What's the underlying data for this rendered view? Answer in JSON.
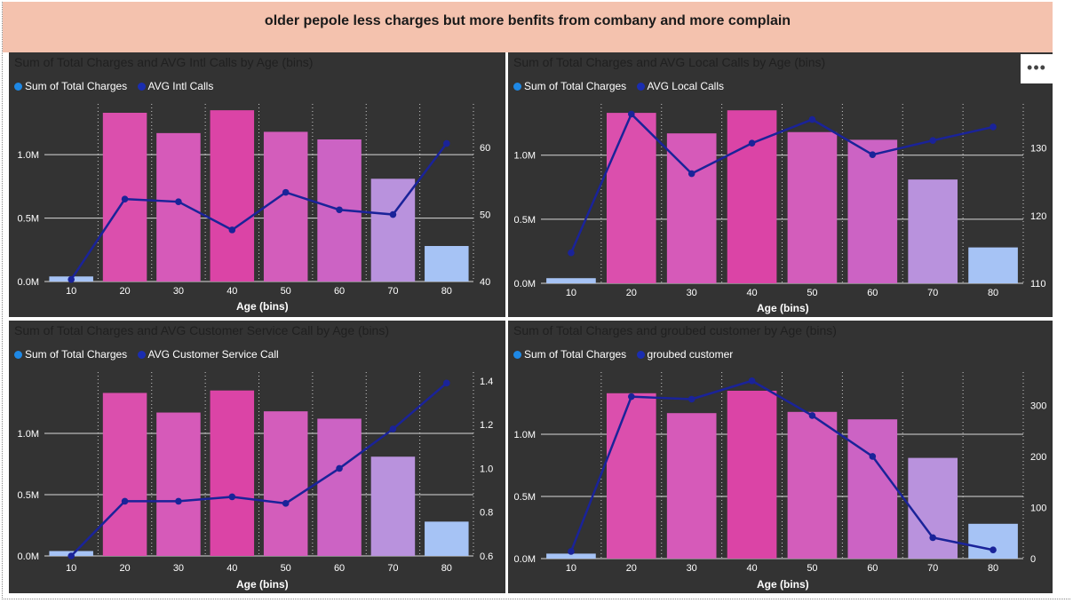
{
  "banner": {
    "title": "older pepole less charges but more benfits from combany and more complain"
  },
  "colors": {
    "background": "#333333",
    "banner": "#f4c2ae",
    "sum_legend": "#1e88e5",
    "avg_legend": "#1a2db0",
    "line": "#1a2399",
    "bars": [
      "#a6c3f5",
      "#db4fad",
      "#d65ab9",
      "#db44a6",
      "#d35dbb",
      "#cc63c4",
      "#b992dd",
      "#a6c3f5"
    ]
  },
  "more_options": {
    "label": "•••"
  },
  "chart_data": [
    {
      "type": "bar",
      "title": "Sum of Total Charges and AVG Intl Calls by Age (bins)",
      "xlabel": "Age (bins)",
      "categories": [
        "10",
        "20",
        "30",
        "40",
        "50",
        "60",
        "70",
        "80"
      ],
      "bar_series": {
        "name": "Sum of Total Charges",
        "values": [
          0.04,
          1.33,
          1.17,
          1.35,
          1.18,
          1.12,
          0.81,
          0.28
        ]
      },
      "line_series": {
        "name": "AVG Intl Calls",
        "values": [
          40.3,
          52.3,
          51.9,
          47.7,
          53.3,
          50.7,
          50.0,
          60.6
        ]
      },
      "y_left": {
        "lim": [
          0,
          1.4
        ],
        "ticks": [
          0,
          0.5,
          1.0
        ],
        "tick_labels": [
          "0.0M",
          "0.5M",
          "1.0M"
        ]
      },
      "y_right": {
        "lim": [
          40,
          66.5
        ],
        "ticks": [
          40,
          50,
          60
        ],
        "tick_labels": [
          "40",
          "50",
          "60"
        ]
      }
    },
    {
      "type": "bar",
      "title": "Sum of Total Charges and AVG Local Calls by Age (bins)",
      "xlabel": "Age (bins)",
      "categories": [
        "10",
        "20",
        "30",
        "40",
        "50",
        "60",
        "70",
        "80"
      ],
      "bar_series": {
        "name": "Sum of Total Charges",
        "values": [
          0.04,
          1.33,
          1.17,
          1.35,
          1.18,
          1.12,
          0.81,
          0.28
        ]
      },
      "line_series": {
        "name": "AVG Local Calls",
        "values": [
          114.5,
          135.0,
          126.2,
          130.7,
          134.2,
          129.0,
          131.1,
          133.1
        ]
      },
      "y_left": {
        "lim": [
          0,
          1.4
        ],
        "ticks": [
          0,
          0.5,
          1.0
        ],
        "tick_labels": [
          "0.0M",
          "0.5M",
          "1.0M"
        ]
      },
      "y_right": {
        "lim": [
          110,
          136.5
        ],
        "ticks": [
          110,
          120,
          130
        ],
        "tick_labels": [
          "110",
          "120",
          "130"
        ]
      }
    },
    {
      "type": "bar",
      "title": "Sum of Total Charges and AVG Customer Service Call by Age (bins)",
      "xlabel": "Age (bins)",
      "categories": [
        "10",
        "20",
        "30",
        "40",
        "50",
        "60",
        "70",
        "80"
      ],
      "bar_series": {
        "name": "Sum of Total Charges",
        "values": [
          0.04,
          1.33,
          1.17,
          1.35,
          1.18,
          1.12,
          0.81,
          0.28
        ]
      },
      "line_series": {
        "name": "AVG Customer Service Call",
        "values": [
          0.6,
          0.85,
          0.85,
          0.87,
          0.84,
          1.0,
          1.18,
          1.39
        ]
      },
      "y_left": {
        "lim": [
          0,
          1.5
        ],
        "ticks": [
          0,
          0.5,
          1.0
        ],
        "tick_labels": [
          "0.0M",
          "0.5M",
          "1.0M"
        ]
      },
      "y_right": {
        "lim": [
          0.6,
          1.44
        ],
        "ticks": [
          0.6,
          0.8,
          1.0,
          1.2,
          1.4
        ],
        "tick_labels": [
          "0.6",
          "0.8",
          "1.0",
          "1.2",
          "1.4"
        ]
      }
    },
    {
      "type": "bar",
      "title": "Sum of Total Charges and groubed customer by Age (bins)",
      "xlabel": "Age (bins)",
      "categories": [
        "10",
        "20",
        "30",
        "40",
        "50",
        "60",
        "70",
        "80"
      ],
      "bar_series": {
        "name": "Sum of Total Charges",
        "values": [
          0.04,
          1.33,
          1.17,
          1.35,
          1.18,
          1.12,
          0.81,
          0.28
        ]
      },
      "line_series": {
        "name": "groubed customer",
        "values": [
          14,
          317,
          312,
          348,
          280,
          200,
          41,
          17
        ]
      },
      "y_left": {
        "lim": [
          0,
          1.5
        ],
        "ticks": [
          0,
          0.5,
          1.0
        ],
        "tick_labels": [
          "0.0M",
          "0.5M",
          "1.0M"
        ]
      },
      "y_right": {
        "lim": [
          0,
          365
        ],
        "ticks": [
          0,
          100,
          200,
          300
        ],
        "tick_labels": [
          "0",
          "100",
          "200",
          "300"
        ]
      }
    }
  ]
}
